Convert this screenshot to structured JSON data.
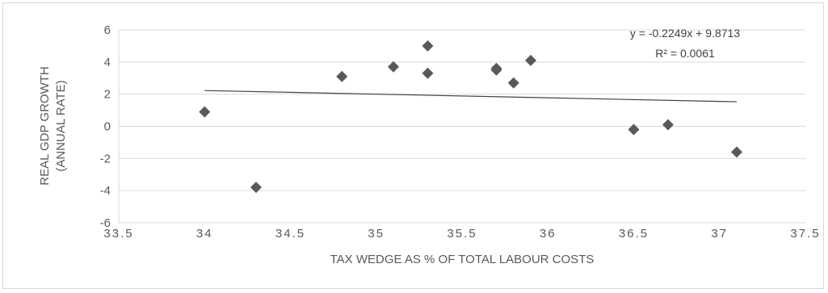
{
  "chart_data": {
    "type": "scatter",
    "xlabel": "TAX WEDGE  AS % OF TOTAL LABOUR COSTS",
    "ylabel": [
      "REAL GDP GROWTH",
      "(ANNUAL RATE)"
    ],
    "xlim": [
      33.5,
      37.5
    ],
    "ylim": [
      -6,
      6
    ],
    "x_ticks": [
      "33.5",
      "34",
      "34.5",
      "35",
      "35.5",
      "36",
      "36.5",
      "37",
      "37.5"
    ],
    "y_ticks": [
      "6",
      "4",
      "2",
      "0",
      "-2",
      "-4",
      "-6"
    ],
    "grid": "horizontal",
    "marker": "diamond",
    "color": "#595959",
    "points": [
      {
        "x": 34.0,
        "y": 0.9
      },
      {
        "x": 34.3,
        "y": -3.8
      },
      {
        "x": 34.8,
        "y": 3.1
      },
      {
        "x": 35.1,
        "y": 3.7
      },
      {
        "x": 35.3,
        "y": 5.0
      },
      {
        "x": 35.3,
        "y": 3.3
      },
      {
        "x": 35.7,
        "y": 3.6
      },
      {
        "x": 35.7,
        "y": 3.5
      },
      {
        "x": 35.8,
        "y": 2.7
      },
      {
        "x": 35.9,
        "y": 4.1
      },
      {
        "x": 36.5,
        "y": -0.2
      },
      {
        "x": 36.7,
        "y": 0.1
      },
      {
        "x": 37.1,
        "y": -1.6
      }
    ],
    "trendline": {
      "slope": -0.2249,
      "intercept": 9.8713,
      "x_range": [
        34.0,
        37.1
      ],
      "equation": "y = -0.2249x + 9.8713",
      "r2": "R² = 0.0061"
    }
  }
}
